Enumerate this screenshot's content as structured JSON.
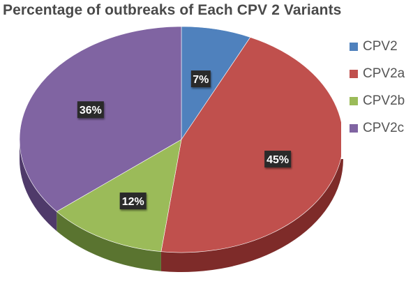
{
  "chart_data": {
    "type": "pie",
    "title": "Percentage of outbreaks of Each CPV 2 Variants",
    "categories": [
      "CPV2",
      "CPV2a",
      "CPV2b",
      "CPV2c"
    ],
    "values": [
      7,
      45,
      12,
      36
    ],
    "labels": [
      "7%",
      "45%",
      "12%",
      "36%"
    ],
    "colors": [
      "#4f81bd",
      "#c0504d",
      "#9bbb59",
      "#8064a2"
    ],
    "side_colors": [
      "#2e5a8e",
      "#7e2b29",
      "#5a7430",
      "#4f3a6a"
    ],
    "legend_position": "right",
    "style": "3d"
  }
}
